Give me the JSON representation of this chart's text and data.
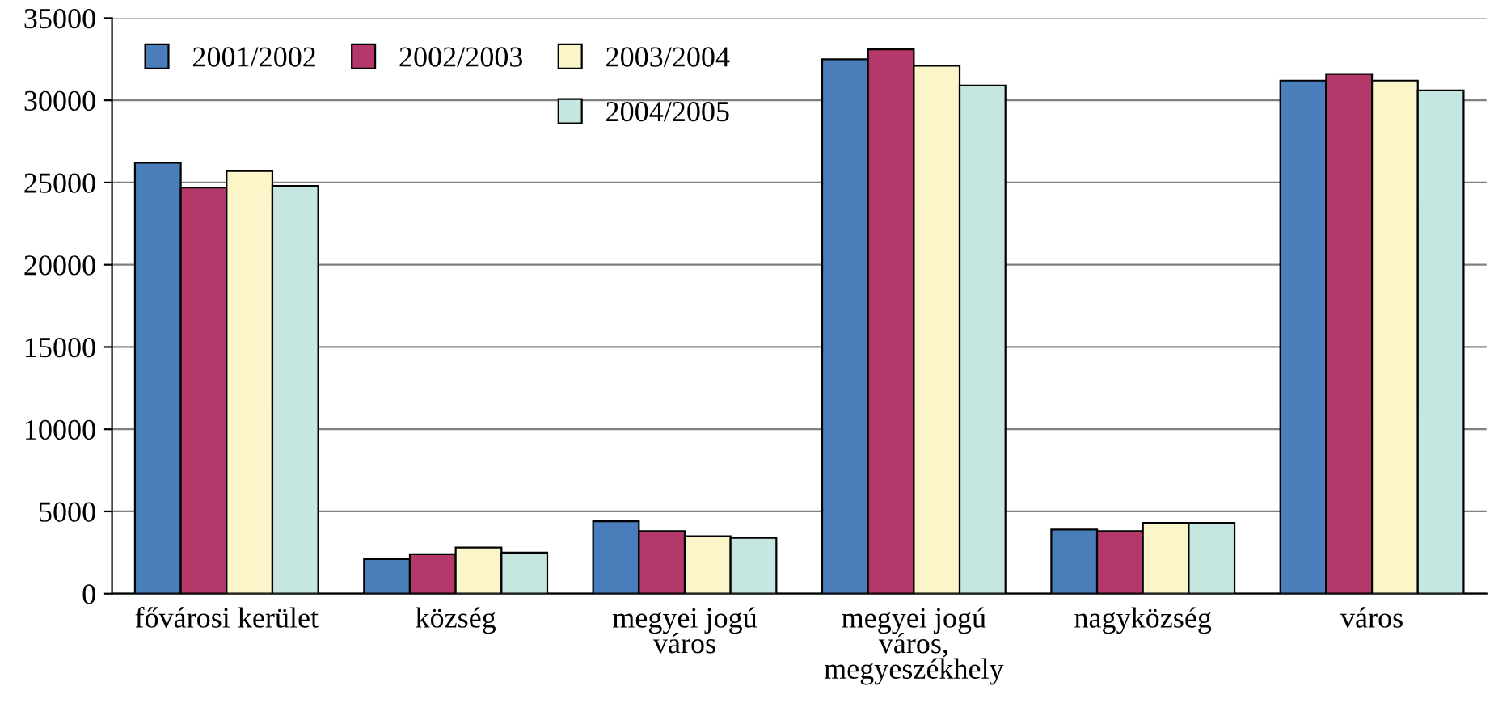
{
  "chart_data": {
    "type": "bar",
    "categories": [
      "fővárosi kerület",
      "község",
      "megyei jogú\nváros",
      "megyei jogú\nváros,\nmegyeszékhely",
      "nagyközség",
      "város"
    ],
    "series": [
      {
        "name": "2001/2002",
        "color": "#4a7ebb",
        "values": [
          26200,
          2100,
          4400,
          32500,
          3900,
          31200
        ]
      },
      {
        "name": "2002/2003",
        "color": "#b5386b",
        "values": [
          24700,
          2400,
          3800,
          33100,
          3800,
          31600
        ]
      },
      {
        "name": "2003/2004",
        "color": "#fbf5c9",
        "values": [
          25700,
          2800,
          3500,
          32100,
          4300,
          31200
        ]
      },
      {
        "name": "2004/2005",
        "color": "#c6e6e2",
        "values": [
          24800,
          2500,
          3400,
          30900,
          4300,
          30600
        ]
      }
    ],
    "ylim": [
      0,
      35000
    ],
    "yticks": [
      0,
      5000,
      10000,
      15000,
      20000,
      25000,
      30000,
      35000
    ],
    "grid": "y",
    "legend": "top left"
  }
}
